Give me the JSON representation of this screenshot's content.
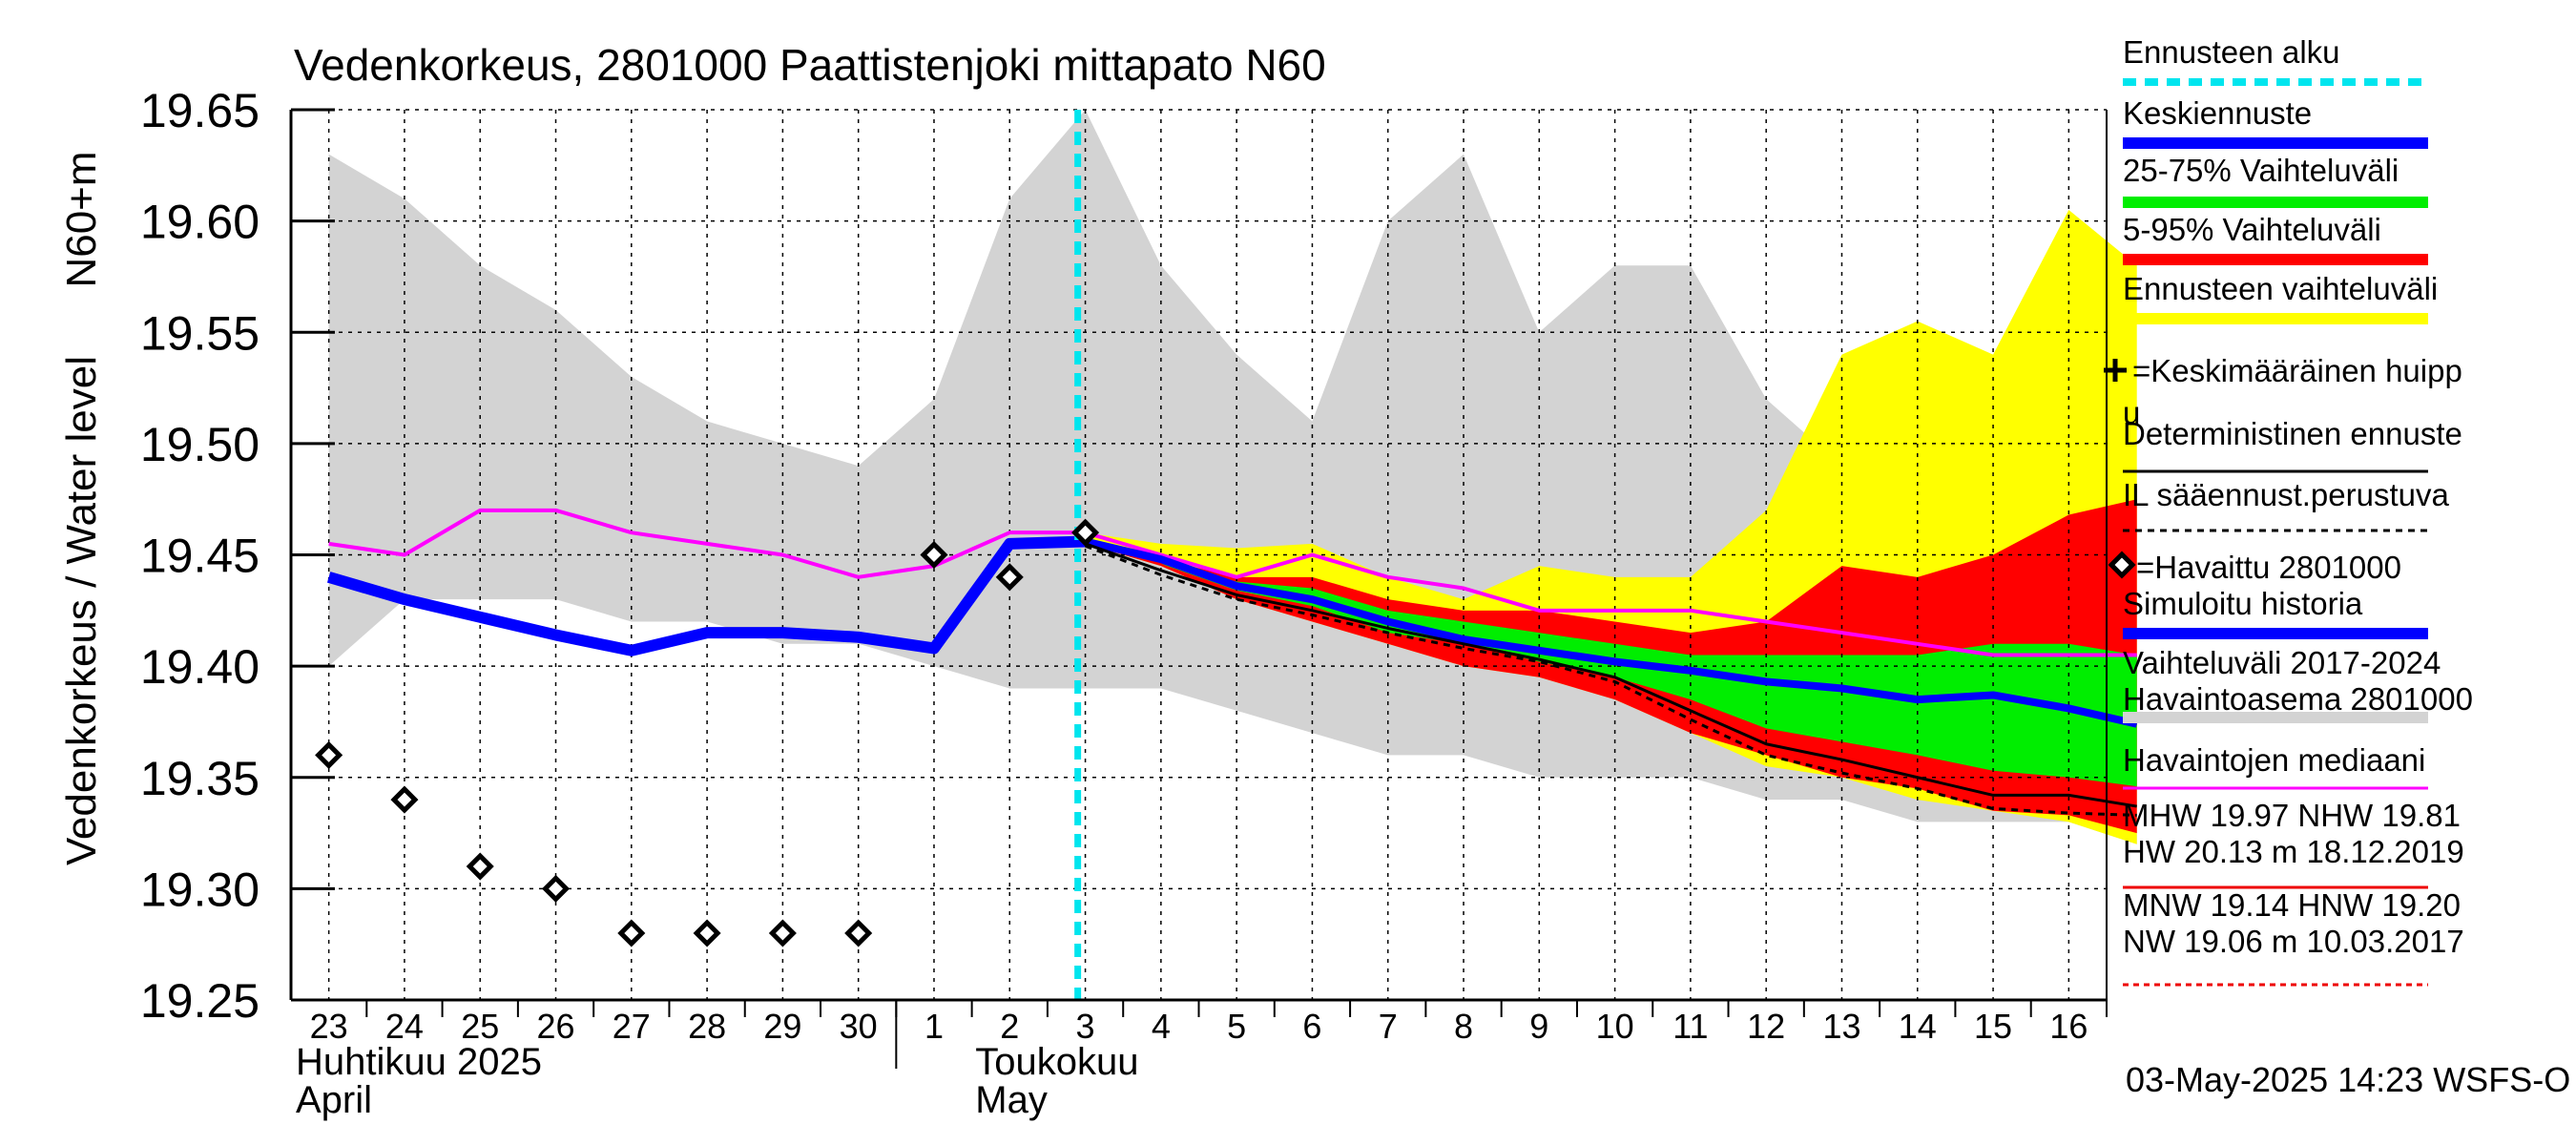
{
  "chart_data": {
    "type": "area",
    "title": "Vedenkorkeus, 2801000 Paattistenjoki mittapato N60",
    "ylabel": "Vedenkorkeus / Water level",
    "yunit": "N60+m",
    "ylim": [
      19.25,
      19.65
    ],
    "yticks": [
      19.25,
      19.3,
      19.35,
      19.4,
      19.45,
      19.5,
      19.55,
      19.6,
      19.65
    ],
    "ytick_labels": [
      "19.25",
      "19.30",
      "19.35",
      "19.40",
      "19.45",
      "19.50",
      "19.55",
      "19.60",
      "19.65"
    ],
    "xlim": [
      22.5,
      46.5
    ],
    "x_unit": "day index (23 = 23 April 2025, 31 = 1 May 2025)",
    "xtick_days": [
      23,
      24,
      25,
      26,
      27,
      28,
      29,
      30,
      31,
      32,
      33,
      34,
      35,
      36,
      37,
      38,
      39,
      40,
      41,
      42,
      43,
      44,
      45,
      46
    ],
    "xtick_labels": [
      "23",
      "24",
      "25",
      "26",
      "27",
      "28",
      "29",
      "30",
      "1",
      "2",
      "3",
      "4",
      "5",
      "6",
      "7",
      "8",
      "9",
      "10",
      "11",
      "12",
      "13",
      "14",
      "15",
      "16"
    ],
    "month_labels": [
      {
        "fi": "Huhtikuu  2025",
        "en": "April"
      },
      {
        "fi": "Toukokuu",
        "en": "May"
      }
    ],
    "forecast_start_day": 32.9,
    "series": [
      {
        "name": "Vaihteluväli 2017-2024 Havaintoasema 2801000",
        "kind": "band",
        "x": [
          23,
          24,
          25,
          26,
          27,
          28,
          29,
          30,
          31,
          32,
          33,
          34,
          35,
          36,
          37,
          38,
          39,
          40,
          41,
          42,
          43,
          44,
          45,
          46,
          46.9
        ],
        "upper": [
          19.63,
          19.61,
          19.58,
          19.56,
          19.53,
          19.51,
          19.5,
          19.49,
          19.52,
          19.61,
          19.65,
          19.58,
          19.54,
          19.51,
          19.6,
          19.63,
          19.55,
          19.58,
          19.58,
          19.52,
          19.49,
          19.46,
          19.46,
          19.46,
          19.48
        ],
        "lower": [
          19.4,
          19.43,
          19.43,
          19.43,
          19.42,
          19.42,
          19.41,
          19.41,
          19.4,
          19.39,
          19.39,
          19.39,
          19.38,
          19.37,
          19.36,
          19.36,
          19.35,
          19.35,
          19.35,
          19.34,
          19.34,
          19.33,
          19.33,
          19.33,
          19.32
        ]
      },
      {
        "name": "Ennusteen vaihteluväli",
        "kind": "band",
        "x": [
          33,
          34,
          35,
          36,
          37,
          38,
          39,
          40,
          41,
          42,
          43,
          44,
          45,
          46,
          46.9
        ],
        "upper": [
          19.46,
          19.455,
          19.453,
          19.455,
          19.44,
          19.43,
          19.445,
          19.44,
          19.44,
          19.47,
          19.54,
          19.555,
          19.54,
          19.605,
          19.58
        ],
        "lower": [
          19.455,
          19.445,
          19.43,
          19.42,
          19.41,
          19.4,
          19.395,
          19.385,
          19.37,
          19.355,
          19.35,
          19.34,
          19.335,
          19.33,
          19.32
        ]
      },
      {
        "name": "5-95% Vaihteluväli",
        "kind": "band",
        "x": [
          33,
          34,
          35,
          36,
          37,
          38,
          39,
          40,
          41,
          42,
          43,
          44,
          45,
          46,
          46.9
        ],
        "upper": [
          19.455,
          19.448,
          19.44,
          19.44,
          19.43,
          19.425,
          19.425,
          19.42,
          19.415,
          19.42,
          19.445,
          19.44,
          19.45,
          19.468,
          19.475
        ],
        "lower": [
          19.455,
          19.445,
          19.43,
          19.42,
          19.41,
          19.4,
          19.395,
          19.385,
          19.37,
          19.36,
          19.35,
          19.345,
          19.335,
          19.333,
          19.325
        ]
      },
      {
        "name": "25-75% Vaihteluväli",
        "kind": "band",
        "x": [
          33,
          34,
          35,
          36,
          37,
          38,
          39,
          40,
          41,
          42,
          43,
          44,
          45,
          46,
          46.9
        ],
        "upper": [
          19.455,
          19.446,
          19.438,
          19.435,
          19.425,
          19.42,
          19.415,
          19.41,
          19.405,
          19.405,
          19.405,
          19.405,
          19.41,
          19.41,
          19.405
        ],
        "lower": [
          19.455,
          19.446,
          19.434,
          19.427,
          19.415,
          19.41,
          19.402,
          19.395,
          19.385,
          19.372,
          19.366,
          19.36,
          19.353,
          19.35,
          19.346
        ]
      },
      {
        "name": "Havaintojen mediaani",
        "kind": "line",
        "x": [
          23,
          24,
          25,
          26,
          27,
          28,
          29,
          30,
          31,
          32,
          33,
          34,
          35,
          36,
          37,
          38,
          39,
          40,
          41,
          42,
          43,
          44,
          45,
          46,
          46.9
        ],
        "y": [
          19.455,
          19.45,
          19.47,
          19.47,
          19.46,
          19.455,
          19.45,
          19.44,
          19.445,
          19.46,
          19.46,
          19.45,
          19.44,
          19.45,
          19.44,
          19.435,
          19.425,
          19.425,
          19.425,
          19.42,
          19.415,
          19.41,
          19.405,
          19.405,
          19.405
        ]
      },
      {
        "name": "Simuloitu historia",
        "kind": "line",
        "x": [
          23,
          24,
          25,
          26,
          27,
          28,
          29,
          30,
          31,
          32,
          33
        ],
        "y": [
          19.44,
          19.43,
          19.422,
          19.414,
          19.407,
          19.415,
          19.415,
          19.413,
          19.408,
          19.455,
          19.456
        ]
      },
      {
        "name": "Keskiennuste",
        "kind": "line",
        "x": [
          33,
          34,
          35,
          36,
          37,
          38,
          39,
          40,
          41,
          42,
          43,
          44,
          45,
          46,
          46.9
        ],
        "y": [
          19.456,
          19.448,
          19.436,
          19.43,
          19.42,
          19.412,
          19.407,
          19.402,
          19.398,
          19.393,
          19.39,
          19.385,
          19.387,
          19.381,
          19.374
        ]
      },
      {
        "name": "Deterministinen ennuste",
        "kind": "line",
        "x": [
          33,
          34,
          35,
          36,
          37,
          38,
          39,
          40,
          41,
          42,
          43,
          44,
          45,
          46,
          46.9
        ],
        "y": [
          19.455,
          19.443,
          19.432,
          19.425,
          19.417,
          19.41,
          19.403,
          19.395,
          19.38,
          19.365,
          19.358,
          19.35,
          19.342,
          19.342,
          19.337
        ]
      },
      {
        "name": "IL sääennust.perustuva",
        "kind": "line",
        "x": [
          33,
          34,
          35,
          36,
          37,
          38,
          39,
          40,
          41,
          42,
          43,
          44,
          45,
          46,
          46.9
        ],
        "y": [
          19.454,
          19.441,
          19.43,
          19.423,
          19.415,
          19.408,
          19.402,
          19.393,
          19.376,
          19.36,
          19.352,
          19.345,
          19.336,
          19.334,
          19.333
        ]
      },
      {
        "name": "Havaittu 2801000",
        "kind": "scatter",
        "x": [
          23,
          24,
          25,
          26,
          27,
          28,
          29,
          30,
          31,
          32,
          33
        ],
        "y": [
          19.36,
          19.34,
          19.31,
          19.3,
          19.28,
          19.28,
          19.28,
          19.28,
          19.45,
          19.44,
          19.46
        ]
      }
    ],
    "legend": {
      "placement": "right",
      "items": [
        {
          "label": "Ennusteen alku",
          "style": "dashed",
          "color": "#00e5ee"
        },
        {
          "label": "Keskiennuste",
          "style": "line",
          "color": "#0000ff"
        },
        {
          "label": "25-75% Vaihteluväli",
          "style": "line",
          "color": "#00ee00"
        },
        {
          "label": "5-95% Vaihteluväli",
          "style": "line",
          "color": "#ff0000"
        },
        {
          "label": "Ennusteen vaihteluväli",
          "style": "line",
          "color": "#ffff00"
        },
        {
          "label": "=Keskimääräinen huippu",
          "style": "plus",
          "color": "#000000"
        },
        {
          "label": "Deterministinen ennuste",
          "style": "thin",
          "color": "#000000"
        },
        {
          "label": "IL sääennust.perustuva",
          "style": "dotted",
          "color": "#000000"
        },
        {
          "label": "=Havaittu 2801000",
          "style": "diamond",
          "color": "#000000"
        },
        {
          "label": "Simuloitu historia",
          "style": "line",
          "color": "#0000ff"
        },
        {
          "label": "Vaihteluväli 2017-2024",
          "label2": " Havaintoasema 2801000",
          "style": "line",
          "color": "#d3d3d3"
        },
        {
          "label": "Havaintojen mediaani",
          "style": "thin",
          "color": "#ff00ff"
        },
        {
          "label": "MHW  19.97 NHW  19.81",
          "label2": "HW  20.13 m 18.12.2019",
          "style": "thin",
          "color": "#ee0000"
        },
        {
          "label": "MNW  19.14 HNW  19.20",
          "label2": "NW  19.06 m 10.03.2017",
          "style": "dashed-thin",
          "color": "#ee0000"
        }
      ]
    },
    "footer": "03-May-2025 14:23 WSFS-O"
  },
  "colors": {
    "hist_band": "#d3d3d3",
    "fc_band": "#ffff00",
    "band_5_95": "#ff0000",
    "band_25_75": "#00ee00",
    "median": "#ff00ff",
    "simulated": "#0000ff",
    "mean_forecast": "#0000ff",
    "forecast_start": "#00e5ee"
  }
}
